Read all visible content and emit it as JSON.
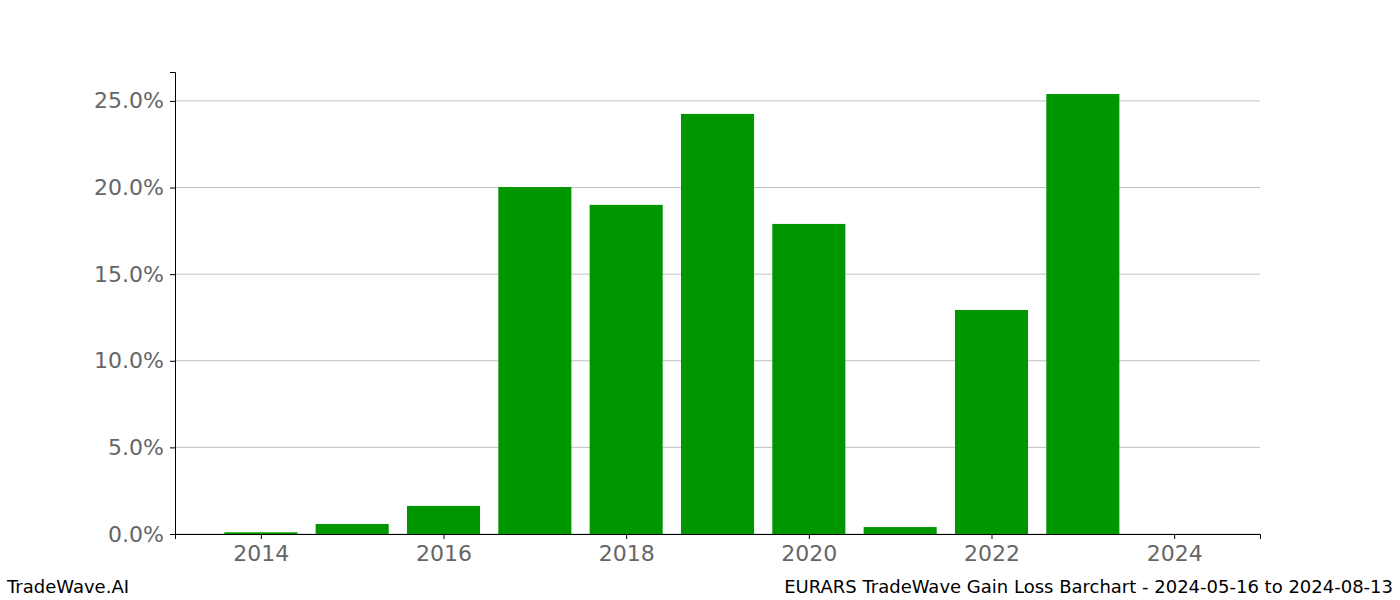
{
  "chart_data": {
    "type": "bar",
    "title": "EURARS TradeWave Gain Loss Barchart - 2024-05-16 to 2024-08-13",
    "subtitle": "TradeWave.AI",
    "x": [
      2014,
      2015,
      2016,
      2017,
      2018,
      2019,
      2020,
      2021,
      2022,
      2023,
      2024
    ],
    "values": [
      0.1,
      0.58,
      1.62,
      20.03,
      19.0,
      24.25,
      17.9,
      0.4,
      12.93,
      25.4,
      0
    ],
    "color": "#009600",
    "xlim": [
      2013.06,
      2024.94
    ],
    "xticks": [
      2014,
      2016,
      2018,
      2020,
      2022,
      2024
    ],
    "ylim": [
      0,
      26.67
    ],
    "yticks": [
      {
        "value": 0,
        "label": "0.0%"
      },
      {
        "value": 5,
        "label": "5.0%"
      },
      {
        "value": 10,
        "label": "10.0%"
      },
      {
        "value": 15,
        "label": "15.0%"
      },
      {
        "value": 20,
        "label": "20.0%"
      },
      {
        "value": 25,
        "label": "25.0%"
      }
    ],
    "grid": true
  }
}
